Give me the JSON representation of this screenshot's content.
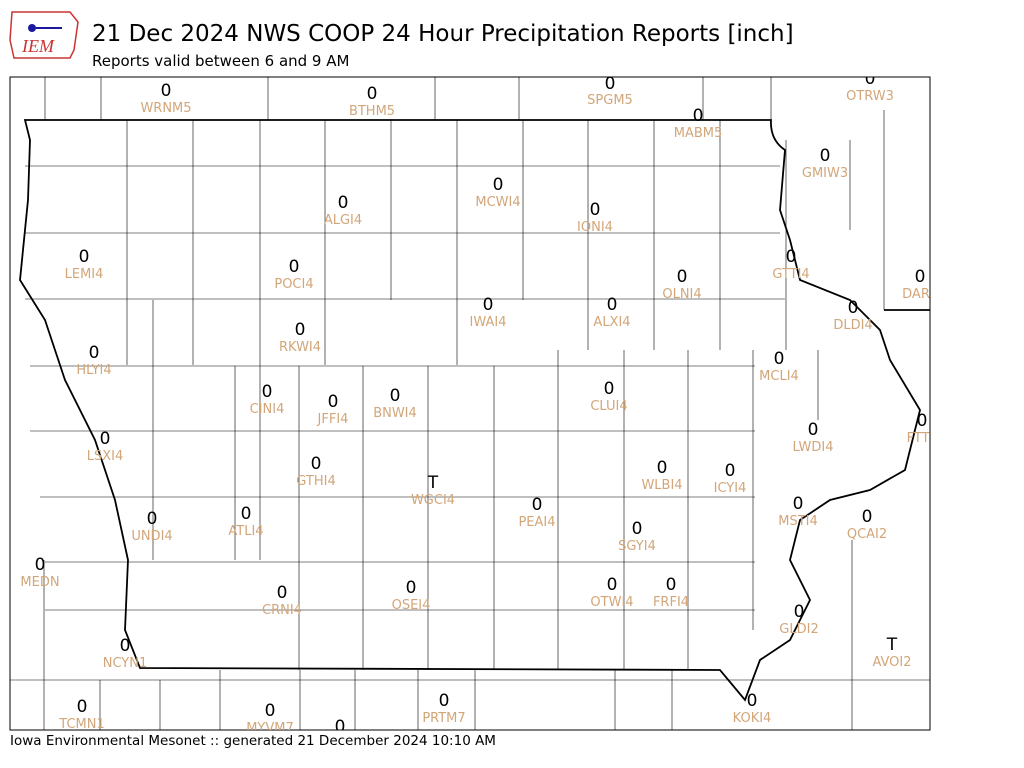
{
  "header": {
    "logo_text": "IEM",
    "title": "21 Dec 2024 NWS COOP 24 Hour Precipitation Reports [inch]",
    "subtitle": "Reports valid between 6 and 9 AM"
  },
  "stations": [
    {
      "value": 0,
      "id": "WRNM5"
    },
    {
      "value": 0,
      "id": "BTHM5"
    },
    {
      "value": 0,
      "id": "SPGM5"
    },
    {
      "value": 0,
      "id": "MABM5"
    },
    {
      "value": 0,
      "id": "OTRW3"
    },
    {
      "value": 0,
      "id": "GMIW3"
    },
    {
      "value": 0,
      "id": "ALGI4"
    },
    {
      "value": 0,
      "id": "MCWI4"
    },
    {
      "value": 0,
      "id": "IONI4"
    },
    {
      "value": 0,
      "id": "LEMI4"
    },
    {
      "value": 0,
      "id": "POCI4"
    },
    {
      "value": 0,
      "id": "OLNI4"
    },
    {
      "value": 0,
      "id": "GTTI4"
    },
    {
      "value": 0,
      "id": "DAR"
    },
    {
      "value": 0,
      "id": "IWAI4"
    },
    {
      "value": 0,
      "id": "ALXI4"
    },
    {
      "value": 0,
      "id": "DLDI4"
    },
    {
      "value": 0,
      "id": "RKWI4"
    },
    {
      "value": 0,
      "id": "HLYI4"
    },
    {
      "value": 0,
      "id": "MCLI4"
    },
    {
      "value": 0,
      "id": "CLUI4"
    },
    {
      "value": 0,
      "id": "CINI4"
    },
    {
      "value": 0,
      "id": "JFFI4"
    },
    {
      "value": 0,
      "id": "BNWI4"
    },
    {
      "value": 0,
      "id": "FTTI"
    },
    {
      "value": 0,
      "id": "LWDI4"
    },
    {
      "value": 0,
      "id": "LSXI4"
    },
    {
      "value": 0,
      "id": "GTHI4"
    },
    {
      "value": "T",
      "id": "WGCI4"
    },
    {
      "value": 0,
      "id": "WLBI4"
    },
    {
      "value": 0,
      "id": "ICYI4"
    },
    {
      "value": 0,
      "id": "PEAI4"
    },
    {
      "value": 0,
      "id": "MSTI4"
    },
    {
      "value": 0,
      "id": "QCAI2"
    },
    {
      "value": 0,
      "id": "ATLI4"
    },
    {
      "value": 0,
      "id": "UNDI4"
    },
    {
      "value": 0,
      "id": "SGYI4"
    },
    {
      "value": 0,
      "id": "MEDN"
    },
    {
      "value": 0,
      "id": "CRNI4"
    },
    {
      "value": 0,
      "id": "OSEI4"
    },
    {
      "value": 0,
      "id": "OTWI4"
    },
    {
      "value": 0,
      "id": "FRFI4"
    },
    {
      "value": 0,
      "id": "GLDI2"
    },
    {
      "value": "T",
      "id": "AVOI2"
    },
    {
      "value": 0,
      "id": "NCYN1"
    },
    {
      "value": 0,
      "id": "TCMN1"
    },
    {
      "value": 0,
      "id": "MYVM7"
    },
    {
      "value": 0,
      "id": "PRTM7"
    },
    {
      "value": 0,
      "id": "KOKI4"
    },
    {
      "value": 0
    }
  ],
  "footer": "Iowa Environmental Mesonet :: generated 21 December 2024 10:10 AM"
}
